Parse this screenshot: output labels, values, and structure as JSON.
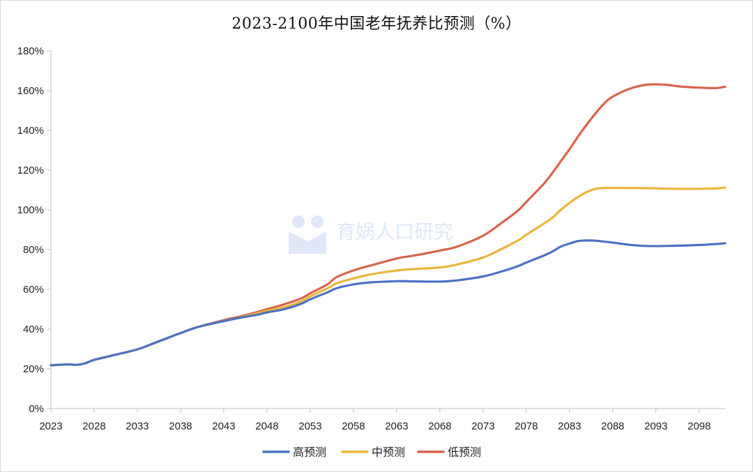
{
  "chart_data": {
    "type": "line",
    "title": "2023-2100年中国老年抚养比预测（%）",
    "xlabel": "",
    "ylabel": "",
    "xlim": [
      2023,
      2101
    ],
    "ylim": [
      0,
      180
    ],
    "x_ticks": [
      "2023",
      "2028",
      "2033",
      "2038",
      "2043",
      "2048",
      "2053",
      "2058",
      "2063",
      "2068",
      "2073",
      "2078",
      "2083",
      "2088",
      "2093",
      "2098"
    ],
    "y_ticks": [
      "0%",
      "20%",
      "40%",
      "60%",
      "80%",
      "100%",
      "120%",
      "140%",
      "160%",
      "180%"
    ],
    "grid": false,
    "legend_position": "bottom",
    "watermark": "育娲人口研究",
    "series": [
      {
        "name": "高预测",
        "color": "#4a72c4",
        "points": [
          [
            2023,
            21.8
          ],
          [
            2025,
            22.2
          ],
          [
            2026,
            22.0
          ],
          [
            2027,
            22.8
          ],
          [
            2028,
            24.5
          ],
          [
            2030,
            26.6
          ],
          [
            2033,
            29.8
          ],
          [
            2035,
            33.0
          ],
          [
            2038,
            38.0
          ],
          [
            2040,
            41.0
          ],
          [
            2043,
            44.0
          ],
          [
            2045,
            45.8
          ],
          [
            2047,
            47.3
          ],
          [
            2048,
            48.4
          ],
          [
            2050,
            50.0
          ],
          [
            2052,
            52.8
          ],
          [
            2053,
            55.0
          ],
          [
            2055,
            58.5
          ],
          [
            2056,
            60.5
          ],
          [
            2058,
            62.5
          ],
          [
            2060,
            63.5
          ],
          [
            2063,
            64.1
          ],
          [
            2065,
            64.0
          ],
          [
            2068,
            63.9
          ],
          [
            2070,
            64.5
          ],
          [
            2073,
            66.5
          ],
          [
            2075,
            68.8
          ],
          [
            2077,
            71.6
          ],
          [
            2078,
            73.5
          ],
          [
            2080,
            77.0
          ],
          [
            2081,
            79.0
          ],
          [
            2082,
            81.5
          ],
          [
            2083,
            83.0
          ],
          [
            2084,
            84.3
          ],
          [
            2085,
            84.6
          ],
          [
            2086,
            84.5
          ],
          [
            2088,
            83.5
          ],
          [
            2090,
            82.4
          ],
          [
            2092,
            81.8
          ],
          [
            2095,
            81.9
          ],
          [
            2098,
            82.3
          ],
          [
            2100,
            82.8
          ],
          [
            2101,
            83.2
          ]
        ]
      },
      {
        "name": "中预测",
        "color": "#ebb53a",
        "points": [
          [
            2023,
            21.8
          ],
          [
            2025,
            22.2
          ],
          [
            2026,
            22.0
          ],
          [
            2027,
            22.8
          ],
          [
            2028,
            24.5
          ],
          [
            2030,
            26.6
          ],
          [
            2033,
            29.8
          ],
          [
            2035,
            33.0
          ],
          [
            2038,
            38.0
          ],
          [
            2040,
            41.0
          ],
          [
            2043,
            44.0
          ],
          [
            2045,
            46.0
          ],
          [
            2047,
            48.0
          ],
          [
            2048,
            49.2
          ],
          [
            2050,
            51.0
          ],
          [
            2052,
            54.0
          ],
          [
            2053,
            56.5
          ],
          [
            2055,
            60.5
          ],
          [
            2056,
            63.0
          ],
          [
            2058,
            65.5
          ],
          [
            2060,
            67.5
          ],
          [
            2063,
            69.5
          ],
          [
            2065,
            70.2
          ],
          [
            2068,
            71.0
          ],
          [
            2070,
            72.5
          ],
          [
            2073,
            76.0
          ],
          [
            2075,
            80.0
          ],
          [
            2077,
            84.5
          ],
          [
            2078,
            87.5
          ],
          [
            2080,
            93.0
          ],
          [
            2081,
            96.0
          ],
          [
            2082,
            100.0
          ],
          [
            2083,
            103.5
          ],
          [
            2084,
            106.5
          ],
          [
            2085,
            109.0
          ],
          [
            2086,
            110.5
          ],
          [
            2087,
            111.0
          ],
          [
            2090,
            111.0
          ],
          [
            2093,
            110.8
          ],
          [
            2095,
            110.6
          ],
          [
            2098,
            110.6
          ],
          [
            2100,
            110.8
          ],
          [
            2101,
            111.2
          ]
        ]
      },
      {
        "name": "低预测",
        "color": "#d9634b",
        "points": [
          [
            2023,
            21.8
          ],
          [
            2025,
            22.2
          ],
          [
            2026,
            22.0
          ],
          [
            2027,
            22.8
          ],
          [
            2028,
            24.5
          ],
          [
            2030,
            26.6
          ],
          [
            2033,
            29.8
          ],
          [
            2035,
            33.0
          ],
          [
            2038,
            38.0
          ],
          [
            2040,
            41.0
          ],
          [
            2043,
            44.5
          ],
          [
            2045,
            46.5
          ],
          [
            2047,
            48.7
          ],
          [
            2048,
            50.0
          ],
          [
            2050,
            52.5
          ],
          [
            2052,
            55.5
          ],
          [
            2053,
            58.0
          ],
          [
            2055,
            62.5
          ],
          [
            2056,
            66.0
          ],
          [
            2058,
            69.5
          ],
          [
            2060,
            72.0
          ],
          [
            2063,
            75.5
          ],
          [
            2065,
            77.0
          ],
          [
            2068,
            79.5
          ],
          [
            2070,
            81.5
          ],
          [
            2073,
            87.0
          ],
          [
            2075,
            93.0
          ],
          [
            2077,
            99.5
          ],
          [
            2078,
            104.0
          ],
          [
            2080,
            113.0
          ],
          [
            2081,
            118.5
          ],
          [
            2082,
            124.5
          ],
          [
            2083,
            130.5
          ],
          [
            2084,
            137.0
          ],
          [
            2085,
            143.0
          ],
          [
            2086,
            148.5
          ],
          [
            2087,
            153.5
          ],
          [
            2088,
            157.0
          ],
          [
            2090,
            161.0
          ],
          [
            2092,
            163.0
          ],
          [
            2094,
            163.0
          ],
          [
            2096,
            162.0
          ],
          [
            2098,
            161.5
          ],
          [
            2100,
            161.3
          ],
          [
            2101,
            162.0
          ]
        ]
      }
    ]
  }
}
